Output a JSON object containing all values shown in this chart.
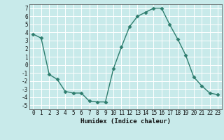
{
  "x": [
    0,
    1,
    2,
    3,
    4,
    5,
    6,
    7,
    8,
    9,
    10,
    11,
    12,
    13,
    14,
    15,
    16,
    17,
    18,
    19,
    20,
    21,
    22,
    23
  ],
  "y": [
    3.8,
    3.3,
    -1.2,
    -1.8,
    -3.3,
    -3.5,
    -3.5,
    -4.5,
    -4.6,
    -4.6,
    -0.5,
    2.2,
    4.7,
    6.0,
    6.5,
    7.0,
    7.0,
    5.0,
    3.2,
    1.2,
    -1.5,
    -2.6,
    -3.5,
    -3.7
  ],
  "line_color": "#2e7d6e",
  "marker": "D",
  "marker_size": 2.5,
  "bg_color": "#c8eaea",
  "grid_color": "#ffffff",
  "xlabel": "Humidex (Indice chaleur)",
  "ylim": [
    -5.5,
    7.5
  ],
  "xlim": [
    -0.5,
    23.5
  ],
  "yticks": [
    -5,
    -4,
    -3,
    -2,
    -1,
    0,
    1,
    2,
    3,
    4,
    5,
    6,
    7
  ],
  "xticks": [
    0,
    1,
    2,
    3,
    4,
    5,
    6,
    7,
    8,
    9,
    10,
    11,
    12,
    13,
    14,
    15,
    16,
    17,
    18,
    19,
    20,
    21,
    22,
    23
  ],
  "tick_fontsize": 5.5,
  "xlabel_fontsize": 6.5,
  "linewidth": 1.0
}
